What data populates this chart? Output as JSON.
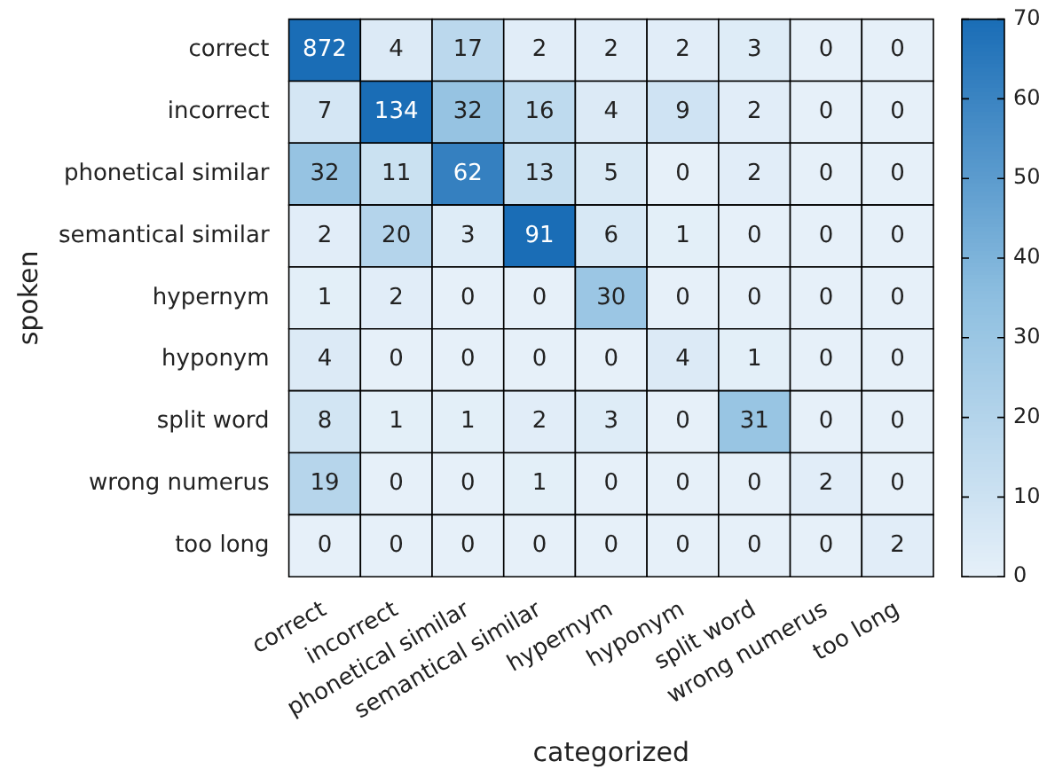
{
  "chart_data": {
    "type": "heatmap",
    "xlabel": "categorized",
    "ylabel": "spoken",
    "categories": [
      "correct",
      "incorrect",
      "phonetical similar",
      "semantical similar",
      "hypernym",
      "hyponym",
      "split word",
      "wrong numerus",
      "too long"
    ],
    "y_categories": [
      "correct",
      "incorrect",
      "phonetical similar",
      "semantical similar",
      "hypernym",
      "hyponym",
      "split word",
      "wrong numerus",
      "too long"
    ],
    "cells": [
      [
        872,
        4,
        17,
        2,
        2,
        2,
        3,
        0,
        0
      ],
      [
        7,
        134,
        32,
        16,
        4,
        9,
        2,
        0,
        0
      ],
      [
        32,
        11,
        62,
        13,
        5,
        0,
        2,
        0,
        0
      ],
      [
        2,
        20,
        3,
        91,
        6,
        1,
        0,
        0,
        0
      ],
      [
        1,
        2,
        0,
        0,
        30,
        0,
        0,
        0,
        0
      ],
      [
        4,
        0,
        0,
        0,
        0,
        4,
        1,
        0,
        0
      ],
      [
        8,
        1,
        1,
        2,
        3,
        0,
        31,
        0,
        0
      ],
      [
        19,
        0,
        0,
        1,
        0,
        0,
        0,
        2,
        0
      ],
      [
        0,
        0,
        0,
        0,
        0,
        0,
        0,
        0,
        2
      ]
    ],
    "clim": [
      0,
      70
    ],
    "cticks": [
      0,
      10,
      20,
      30,
      40,
      50,
      60,
      70
    ],
    "data_labels": true
  }
}
